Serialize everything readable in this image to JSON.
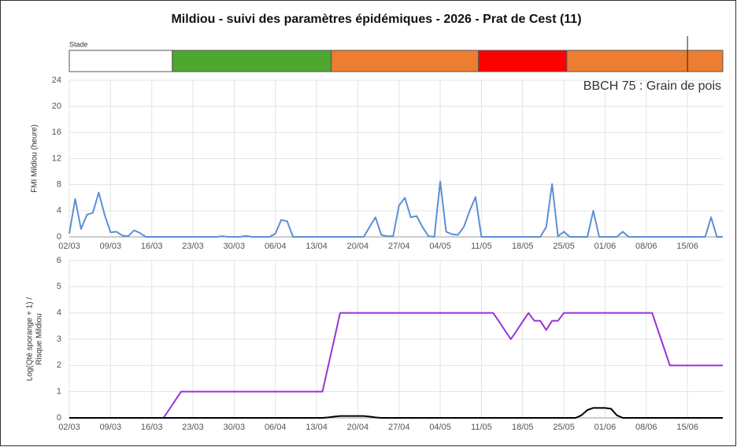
{
  "title": "Mildiou - suivi des paramètres épidémiques - 2026 - Prat de Cest (11)",
  "chart_data": [
    {
      "type": "timeline",
      "title": "Stade",
      "segments": [
        {
          "color": "#ffffff",
          "start": 0,
          "end": 17.5
        },
        {
          "color": "#4ea72e",
          "start": 17.5,
          "end": 44.5
        },
        {
          "color": "#ed7d31",
          "start": 44.5,
          "end": 69.5
        },
        {
          "color": "#ff0000",
          "start": 69.5,
          "end": 84.5
        },
        {
          "color": "#ed7d31",
          "start": 84.5,
          "end": 111
        }
      ],
      "marker": 105
    },
    {
      "type": "line",
      "ylabel": "FMI Mildiou (heure)",
      "annotation": "BBCH 75 : Grain de pois",
      "categories": [
        "02/03",
        null,
        null,
        null,
        null,
        null,
        null,
        "09/03",
        null,
        null,
        null,
        null,
        null,
        null,
        "16/03",
        null,
        null,
        null,
        null,
        null,
        null,
        "23/03",
        null,
        null,
        null,
        null,
        null,
        null,
        "30/03",
        null,
        null,
        null,
        null,
        null,
        null,
        "06/04",
        null,
        null,
        null,
        null,
        null,
        null,
        "13/04",
        null,
        null,
        null,
        null,
        null,
        null,
        "20/04",
        null,
        null,
        null,
        null,
        null,
        null,
        "27/04",
        null,
        null,
        null,
        null,
        null,
        null,
        "04/05",
        null,
        null,
        null,
        null,
        null,
        null,
        "11/05",
        null,
        null,
        null,
        null,
        null,
        null,
        "18/05",
        null,
        null,
        null,
        null,
        null,
        null,
        "25/05",
        null,
        null,
        null,
        null,
        null,
        null,
        "01/06",
        null,
        null,
        null,
        null,
        null,
        null,
        "08/06",
        null,
        null,
        null,
        null,
        null,
        null,
        "15/06",
        null,
        null,
        null,
        null,
        null,
        null
      ],
      "series": [
        {
          "color": "#5b8fd6",
          "values": [
            0.5,
            5.8,
            1.2,
            3.4,
            3.7,
            6.8,
            3.4,
            0.7,
            0.8,
            0.2,
            0.1,
            1.0,
            0.6,
            0,
            0,
            0,
            0,
            0,
            0,
            0,
            0,
            0,
            0,
            0,
            0,
            0,
            0.1,
            0,
            0,
            0,
            0.15,
            0,
            0,
            0,
            0,
            0.5,
            2.6,
            2.4,
            0,
            0,
            0,
            0,
            0,
            0,
            0,
            0,
            0,
            0,
            0,
            0,
            0,
            1.5,
            3.0,
            0.3,
            0.1,
            0.1,
            4.8,
            6.0,
            3.0,
            3.2,
            1.5,
            0.1,
            0,
            8.5,
            0.8,
            0.4,
            0.3,
            1.5,
            4.0,
            6.1,
            0,
            0,
            0,
            0,
            0,
            0,
            0,
            0,
            0,
            0,
            0,
            1.5,
            8.1,
            0.1,
            0.8,
            0,
            0,
            0,
            0,
            4.0,
            0,
            0,
            0,
            0,
            0.8,
            0,
            0,
            0,
            0,
            0,
            0,
            0,
            0,
            0,
            0,
            0,
            0,
            0,
            0,
            3.0,
            0,
            0
          ]
        }
      ],
      "ylim": [
        0,
        24
      ],
      "yticks": [
        0,
        4,
        8,
        12,
        16,
        20,
        24
      ],
      "grid": true
    },
    {
      "type": "line",
      "ylabel": [
        "Log(Qté sporange + 1) /",
        "Risque Mildiou"
      ],
      "categories": [
        "02/03",
        null,
        null,
        null,
        null,
        null,
        null,
        "09/03",
        null,
        null,
        null,
        null,
        null,
        null,
        "16/03",
        null,
        null,
        null,
        null,
        null,
        null,
        "23/03",
        null,
        null,
        null,
        null,
        null,
        null,
        "30/03",
        null,
        null,
        null,
        null,
        null,
        null,
        "06/04",
        null,
        null,
        null,
        null,
        null,
        null,
        "13/04",
        null,
        null,
        null,
        null,
        null,
        null,
        "20/04",
        null,
        null,
        null,
        null,
        null,
        null,
        "27/04",
        null,
        null,
        null,
        null,
        null,
        null,
        "04/05",
        null,
        null,
        null,
        null,
        null,
        null,
        "11/05",
        null,
        null,
        null,
        null,
        null,
        null,
        "18/05",
        null,
        null,
        null,
        null,
        null,
        null,
        "25/05",
        null,
        null,
        null,
        null,
        null,
        null,
        "01/06",
        null,
        null,
        null,
        null,
        null,
        null,
        "08/06",
        null,
        null,
        null,
        null,
        null,
        null,
        "15/06",
        null,
        null,
        null,
        null,
        null,
        null
      ],
      "series": [
        {
          "color": "#9b30d9",
          "values": [
            0,
            0,
            0,
            0,
            0,
            0,
            0,
            0,
            0,
            0,
            0,
            0,
            0,
            0,
            0,
            0,
            0,
            0.33,
            0.67,
            1,
            1,
            1,
            1,
            1,
            1,
            1,
            1,
            1,
            1,
            1,
            1,
            1,
            1,
            1,
            1,
            1,
            1,
            1,
            1,
            1,
            1,
            1,
            1,
            1,
            2,
            3,
            4,
            4,
            4,
            4,
            4,
            4,
            4,
            4,
            4,
            4,
            4,
            4,
            4,
            4,
            4,
            4,
            4,
            4,
            4,
            4,
            4,
            4,
            4,
            4,
            4,
            4,
            4,
            3.67,
            3.33,
            3,
            3.33,
            3.67,
            4,
            3.7,
            3.7,
            3.35,
            3.7,
            3.7,
            4,
            4,
            4,
            4,
            4,
            4,
            4,
            4,
            4,
            4,
            4,
            4,
            4,
            4,
            4,
            4,
            3.33,
            2.67,
            2,
            2,
            2,
            2,
            2,
            2,
            2,
            2,
            2,
            2
          ]
        },
        {
          "color": "#000000",
          "values": [
            0,
            0,
            0,
            0,
            0,
            0,
            0,
            0,
            0,
            0,
            0,
            0,
            0,
            0,
            0,
            0,
            0,
            0,
            0,
            0,
            0,
            0,
            0,
            0,
            0,
            0,
            0,
            0,
            0,
            0,
            0,
            0,
            0,
            0,
            0,
            0,
            0,
            0,
            0,
            0,
            0,
            0,
            0,
            0,
            0.02,
            0.05,
            0.07,
            0.07,
            0.07,
            0.07,
            0.07,
            0.05,
            0.02,
            0,
            0,
            0,
            0,
            0,
            0,
            0,
            0,
            0,
            0,
            0,
            0,
            0,
            0,
            0,
            0,
            0,
            0,
            0,
            0,
            0,
            0,
            0,
            0,
            0,
            0,
            0,
            0,
            0,
            0,
            0,
            0,
            0,
            0,
            0.1,
            0.3,
            0.38,
            0.38,
            0.38,
            0.35,
            0.1,
            0,
            0,
            0,
            0,
            0,
            0,
            0,
            0,
            0,
            0,
            0,
            0,
            0,
            0,
            0,
            0,
            0,
            0
          ]
        }
      ],
      "ylim": [
        0,
        6
      ],
      "yticks": [
        0,
        1,
        2,
        3,
        4,
        5,
        6
      ],
      "grid": true
    }
  ]
}
